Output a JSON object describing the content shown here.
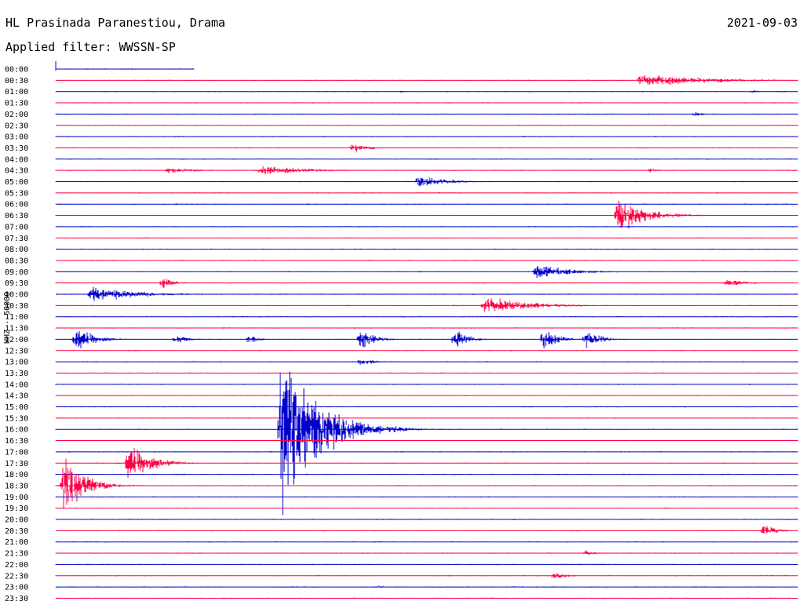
{
  "header": {
    "station": "HL Prasinada Paranestiou, Drama",
    "date": "2021-09-03",
    "filter": "Applied filter: WWSSN-SP",
    "channel": "HHZ - 50000"
  },
  "colors": {
    "even_row": "#0000cc",
    "odd_row": "#ff0044"
  },
  "chart_data": {
    "type": "line",
    "title": "HL Prasinada Paranestiou, Drama",
    "subtitle": "Applied filter: WWSSN-SP",
    "ylabel": "HHZ - 50000",
    "xlabel": "",
    "row_labels": [
      "00:00",
      "00:30",
      "01:00",
      "01:30",
      "02:00",
      "02:30",
      "03:00",
      "03:30",
      "04:00",
      "04:30",
      "05:00",
      "05:30",
      "06:00",
      "06:30",
      "07:00",
      "07:30",
      "08:00",
      "08:30",
      "09:00",
      "09:30",
      "10:00",
      "10:30",
      "11:00",
      "11:30",
      "12:00",
      "12:30",
      "13:00",
      "13:30",
      "14:00",
      "14:30",
      "15:00",
      "15:30",
      "16:00",
      "16:30",
      "17:00",
      "17:30",
      "18:00",
      "18:30",
      "19:00",
      "19:30",
      "20:00",
      "20:30",
      "21:00",
      "21:30",
      "22:00",
      "22:30",
      "23:00",
      "23:30"
    ],
    "x_range_minutes": [
      0,
      30
    ],
    "record_start_minute": 0,
    "record_end_minute": 5.6,
    "events": [
      {
        "row": "00:30",
        "minute": 23.5,
        "amplitude": 6,
        "duration": 6
      },
      {
        "row": "01:00",
        "minute": 13.8,
        "amplitude": 1,
        "duration": 1
      },
      {
        "row": "01:00",
        "minute": 28.0,
        "amplitude": 1.5,
        "duration": 1.2
      },
      {
        "row": "02:00",
        "minute": 25.7,
        "amplitude": 2,
        "duration": 1.2
      },
      {
        "row": "03:30",
        "minute": 11.9,
        "amplitude": 5,
        "duration": 1.2
      },
      {
        "row": "04:30",
        "minute": 4.4,
        "amplitude": 3,
        "duration": 2.5
      },
      {
        "row": "04:30",
        "minute": 8.1,
        "amplitude": 5,
        "duration": 4
      },
      {
        "row": "04:30",
        "minute": 23.9,
        "amplitude": 2,
        "duration": 0.8
      },
      {
        "row": "05:00",
        "minute": 14.5,
        "amplitude": 6,
        "duration": 2.5
      },
      {
        "row": "06:30",
        "minute": 22.6,
        "amplitude": 16,
        "duration": 2.5
      },
      {
        "row": "09:00",
        "minute": 19.3,
        "amplitude": 7,
        "duration": 3
      },
      {
        "row": "09:30",
        "minute": 4.2,
        "amplitude": 6,
        "duration": 1
      },
      {
        "row": "09:30",
        "minute": 27.0,
        "amplitude": 4,
        "duration": 1.5
      },
      {
        "row": "10:00",
        "minute": 1.3,
        "amplitude": 7,
        "duration": 4
      },
      {
        "row": "10:30",
        "minute": 17.2,
        "amplitude": 8,
        "duration": 4
      },
      {
        "row": "12:00",
        "minute": 0.7,
        "amplitude": 12,
        "duration": 1.5
      },
      {
        "row": "12:00",
        "minute": 4.7,
        "amplitude": 5,
        "duration": 1
      },
      {
        "row": "12:00",
        "minute": 7.7,
        "amplitude": 5,
        "duration": 0.8
      },
      {
        "row": "12:00",
        "minute": 12.2,
        "amplitude": 10,
        "duration": 1.2
      },
      {
        "row": "12:00",
        "minute": 16.0,
        "amplitude": 9,
        "duration": 1.2
      },
      {
        "row": "12:00",
        "minute": 19.6,
        "amplitude": 11,
        "duration": 1.2
      },
      {
        "row": "12:00",
        "minute": 21.3,
        "amplitude": 10,
        "duration": 1.2
      },
      {
        "row": "13:00",
        "minute": 12.2,
        "amplitude": 4,
        "duration": 1.2
      },
      {
        "row": "16:00",
        "minute": 9.0,
        "amplitude": 80,
        "duration": 3
      },
      {
        "row": "17:30",
        "minute": 2.8,
        "amplitude": 18,
        "duration": 2
      },
      {
        "row": "18:30",
        "minute": 0.2,
        "amplitude": 28,
        "duration": 1.8
      },
      {
        "row": "20:30",
        "minute": 28.5,
        "amplitude": 7,
        "duration": 1
      },
      {
        "row": "21:30",
        "minute": 21.3,
        "amplitude": 3,
        "duration": 0.8
      },
      {
        "row": "22:30",
        "minute": 20.0,
        "amplitude": 3,
        "duration": 1.5
      },
      {
        "row": "23:00",
        "minute": 12.9,
        "amplitude": 2,
        "duration": 0.6
      }
    ],
    "grid": false,
    "legend": "none"
  }
}
